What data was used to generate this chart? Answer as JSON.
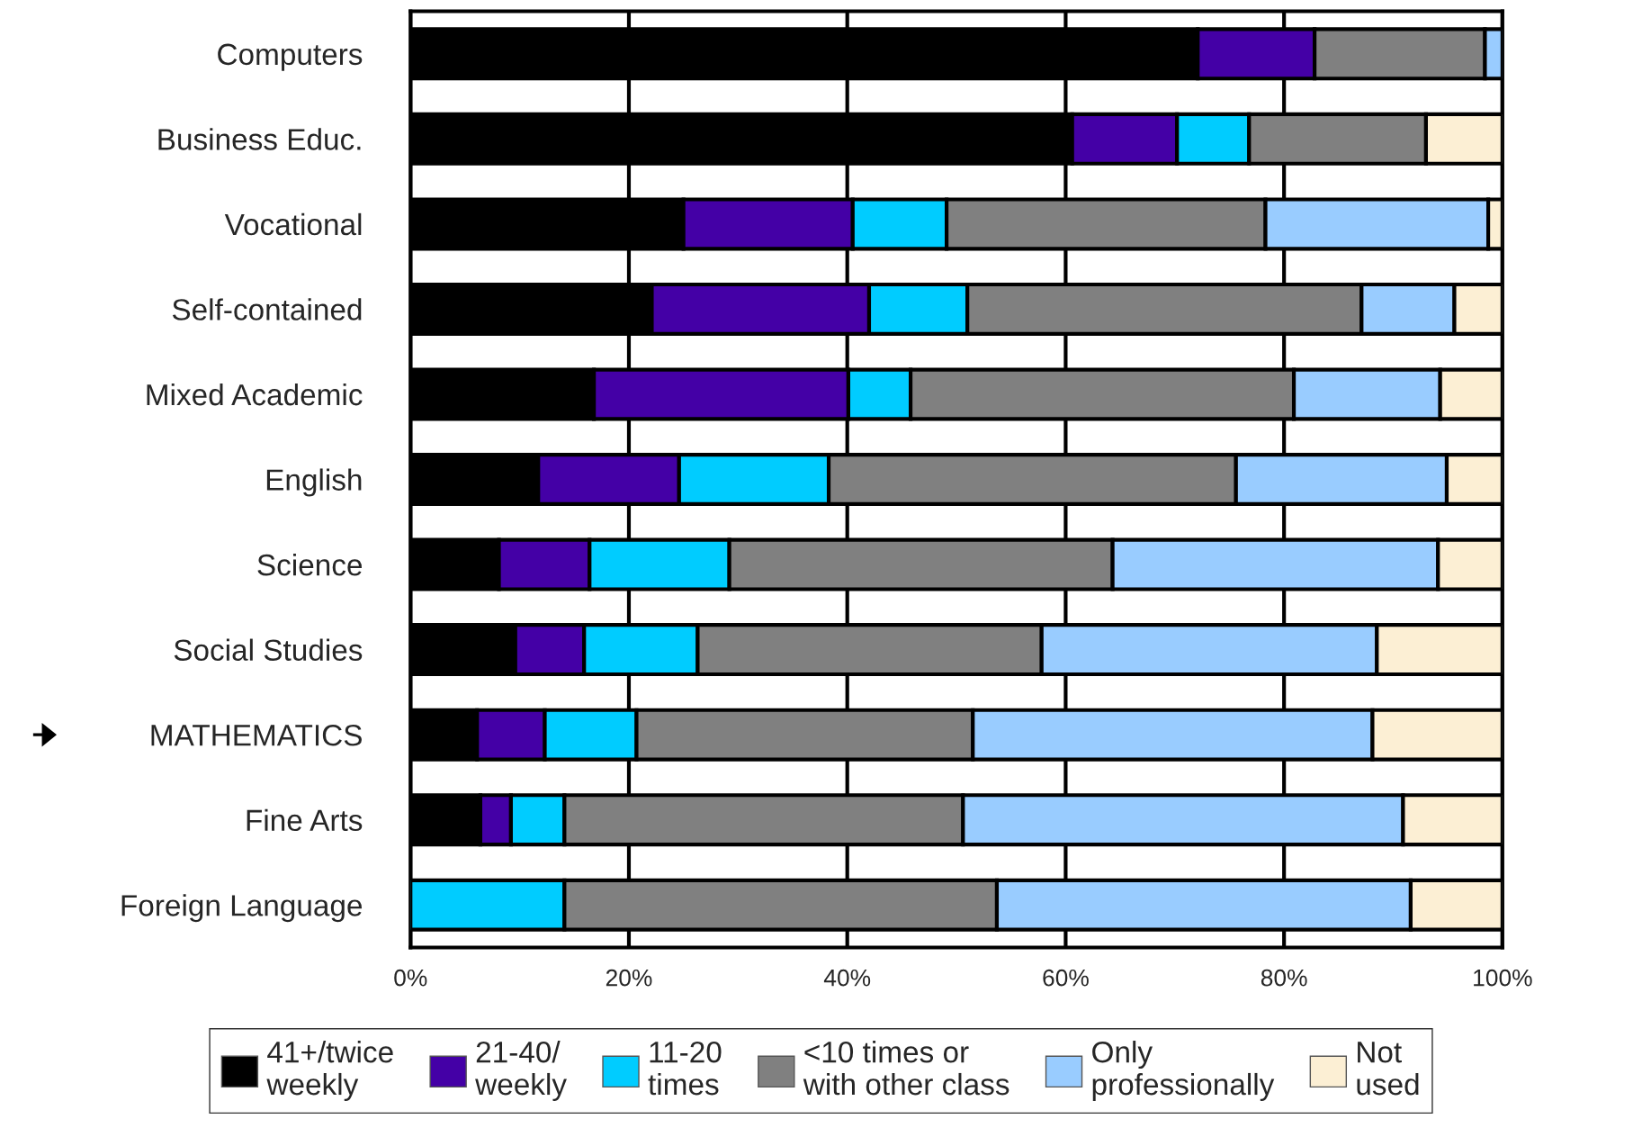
{
  "chart_data": {
    "type": "bar",
    "orientation": "horizontal",
    "stacked": true,
    "categories": [
      "Computers",
      "Business Educ.",
      "Vocational",
      "Self-contained",
      "Mixed Academic",
      "English",
      "Science",
      "Social Studies",
      "MATHEMATICS",
      "Fine Arts",
      "Foreign Language"
    ],
    "series": [
      {
        "name": "41+/twice weekly",
        "color": "#000000",
        "values": [
          72.1,
          60.6,
          25.0,
          22.1,
          16.8,
          11.7,
          8.1,
          9.6,
          6.1,
          6.4,
          null
        ]
      },
      {
        "name": "21-40/ weekly",
        "color": "#4400a6",
        "values": [
          10.7,
          9.6,
          15.5,
          19.9,
          23.3,
          12.9,
          8.3,
          6.3,
          6.2,
          2.8,
          null
        ]
      },
      {
        "name": "11-20 times",
        "color": "#00ccff",
        "values": [
          null,
          6.6,
          8.6,
          9.0,
          5.7,
          13.7,
          12.8,
          10.4,
          8.4,
          4.9,
          14.1
        ]
      },
      {
        "name": "<10 times or with other class",
        "color": "#808080",
        "values": [
          15.6,
          16.2,
          29.2,
          36.1,
          35.1,
          37.3,
          35.1,
          31.5,
          30.8,
          36.5,
          39.6
        ]
      },
      {
        "name": "Only professionally",
        "color": "#99ccff",
        "values": [
          1.6,
          null,
          20.4,
          8.5,
          13.4,
          19.3,
          29.8,
          30.7,
          36.6,
          40.3,
          37.9
        ]
      },
      {
        "name": "Not used",
        "color": "#fcefd4",
        "values": [
          null,
          7.0,
          1.3,
          4.4,
          5.7,
          5.1,
          5.9,
          11.5,
          11.9,
          9.1,
          8.4
        ]
      }
    ],
    "xlim": [
      0,
      100
    ],
    "xticks": [
      {
        "value": 0,
        "label": "0%"
      },
      {
        "value": 20,
        "label": "20%"
      },
      {
        "value": 40,
        "label": "40%"
      },
      {
        "value": 60,
        "label": "60%"
      },
      {
        "value": 80,
        "label": "80%"
      },
      {
        "value": 100,
        "label": "100%"
      }
    ],
    "grid": "x",
    "legend": "bottom"
  }
}
